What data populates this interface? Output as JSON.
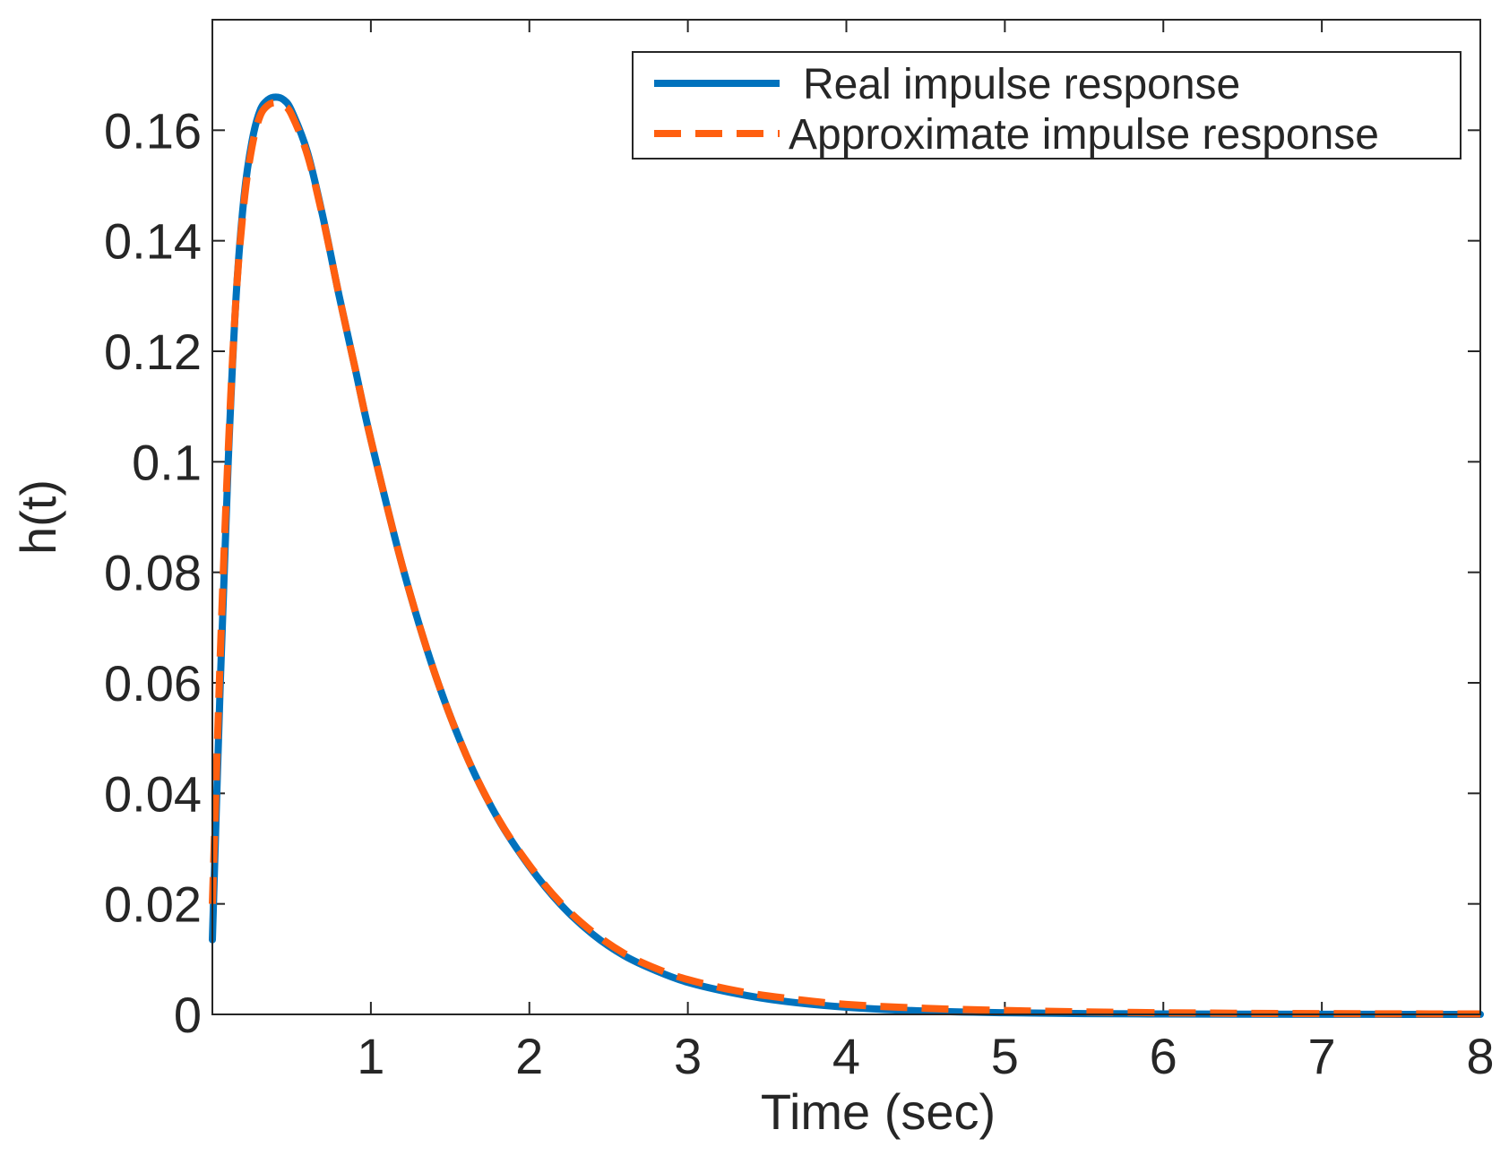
{
  "chart_data": {
    "type": "line",
    "title": "",
    "xlabel": "Time (sec)",
    "ylabel": "h(t)",
    "xlim": [
      0,
      8
    ],
    "ylim": [
      0,
      0.18
    ],
    "x_ticks": [
      1,
      2,
      3,
      4,
      5,
      6,
      7,
      8
    ],
    "x_tick_labels": [
      "1",
      "2",
      "3",
      "4",
      "5",
      "6",
      "7",
      "8"
    ],
    "y_ticks": [
      0,
      0.02,
      0.04,
      0.06,
      0.08,
      0.1,
      0.12,
      0.14,
      0.16
    ],
    "y_tick_labels": [
      "0",
      "0.02",
      "0.04",
      "0.06",
      "0.08",
      "0.1",
      "0.12",
      "0.14",
      "0.16"
    ],
    "grid": false,
    "legend_position": "top-right",
    "series": [
      {
        "name": "Real impulse response",
        "color": "#0072BD",
        "style": "solid",
        "x": [
          0,
          0.05,
          0.1,
          0.15,
          0.2,
          0.25,
          0.3,
          0.35,
          0.4,
          0.45,
          0.5,
          0.6,
          0.7,
          0.8,
          0.9,
          1.0,
          1.2,
          1.4,
          1.6,
          1.8,
          2.0,
          2.2,
          2.4,
          2.6,
          2.8,
          3.0,
          3.3,
          3.6,
          4.0,
          4.5,
          5.0,
          5.5,
          6.0,
          6.5,
          7.0,
          7.5,
          8.0
        ],
        "y": [
          0.0135,
          0.06,
          0.1,
          0.13,
          0.148,
          0.158,
          0.1635,
          0.1655,
          0.166,
          0.1655,
          0.1635,
          0.156,
          0.144,
          0.13,
          0.117,
          0.104,
          0.081,
          0.062,
          0.047,
          0.0355,
          0.0268,
          0.0198,
          0.0145,
          0.0106,
          0.0079,
          0.0058,
          0.0038,
          0.0024,
          0.0013,
          0.0006,
          0.0003,
          0.00015,
          8e-05,
          4e-05,
          2e-05,
          1e-05,
          0.0
        ]
      },
      {
        "name": "Approximate impulse response",
        "color": "#FF5F0F",
        "style": "dashed",
        "x": [
          0,
          0.05,
          0.1,
          0.15,
          0.2,
          0.25,
          0.3,
          0.35,
          0.4,
          0.45,
          0.5,
          0.6,
          0.7,
          0.8,
          0.9,
          1.0,
          1.2,
          1.4,
          1.6,
          1.8,
          2.0,
          2.2,
          2.4,
          2.6,
          2.8,
          3.0,
          3.3,
          3.6,
          4.0,
          4.5,
          5.0,
          5.5,
          6.0,
          6.5,
          7.0,
          7.5,
          8.0
        ],
        "y": [
          0.02,
          0.065,
          0.102,
          0.13,
          0.147,
          0.157,
          0.1625,
          0.1645,
          0.165,
          0.1645,
          0.1628,
          0.1555,
          0.1438,
          0.13,
          0.117,
          0.104,
          0.081,
          0.062,
          0.047,
          0.0356,
          0.027,
          0.0201,
          0.0149,
          0.011,
          0.0083,
          0.0063,
          0.0043,
          0.003,
          0.0018,
          0.0011,
          0.0007,
          0.00045,
          0.0003,
          0.0002,
          0.00014,
          0.0001,
          8e-05
        ]
      }
    ]
  }
}
